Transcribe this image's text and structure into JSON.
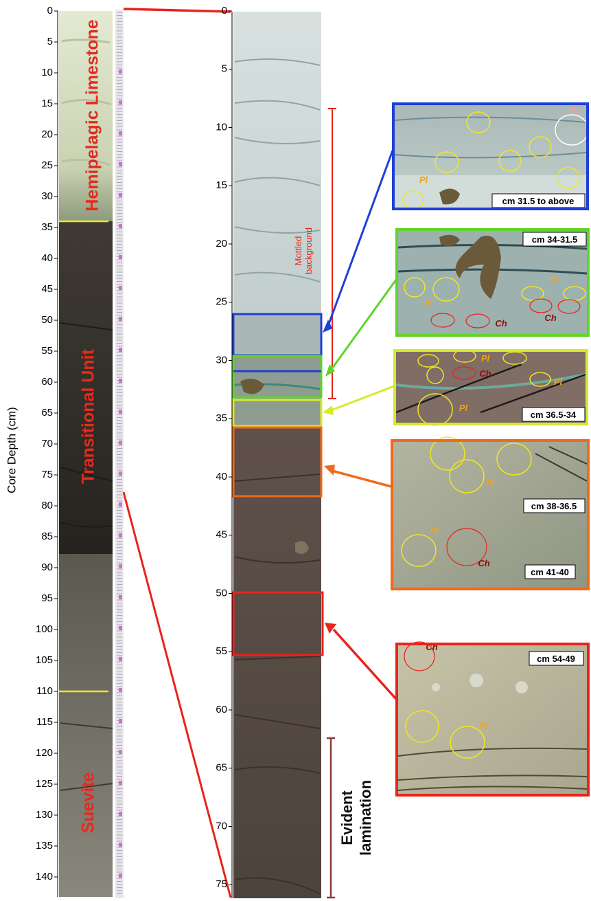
{
  "axis": {
    "label": "Core Depth (cm)",
    "main_ticks": [
      "0",
      "5",
      "10",
      "15",
      "20",
      "25",
      "30",
      "35",
      "40",
      "45",
      "50",
      "55",
      "60",
      "65",
      "70",
      "75",
      "80",
      "85",
      "90",
      "95",
      "100",
      "105",
      "110",
      "115",
      "120",
      "125",
      "130",
      "135",
      "140"
    ],
    "zoom_ticks": [
      "0",
      "5",
      "10",
      "15",
      "20",
      "25",
      "30",
      "35",
      "40",
      "45",
      "50",
      "55",
      "60",
      "65",
      "70",
      "75"
    ]
  },
  "units": {
    "hemipelagic": "Hemipelagic Limestone",
    "transitional": "Transitional Unit",
    "suevite": "Suevite"
  },
  "annotations": {
    "mottled_line1": "Mottled",
    "mottled_line2": "background",
    "evident_line1": "Evident",
    "evident_line2": "lamination"
  },
  "insets": [
    {
      "caption": "cm 31.5 to above",
      "frame_color": "#1f3fd6"
    },
    {
      "caption": "cm 34-31.5",
      "frame_color": "#5fd42a"
    },
    {
      "caption": "cm 36.5-34",
      "frame_color": "#d8e82a"
    },
    {
      "caption": "cm 38-36.5",
      "caption2": "cm 41-40",
      "frame_color": "#ef6a1c"
    },
    {
      "caption": "cm 54-49",
      "frame_color": "#e8241c"
    }
  ],
  "labels": {
    "pa": "Pa",
    "pl": "Pl",
    "ch": "Ch"
  }
}
